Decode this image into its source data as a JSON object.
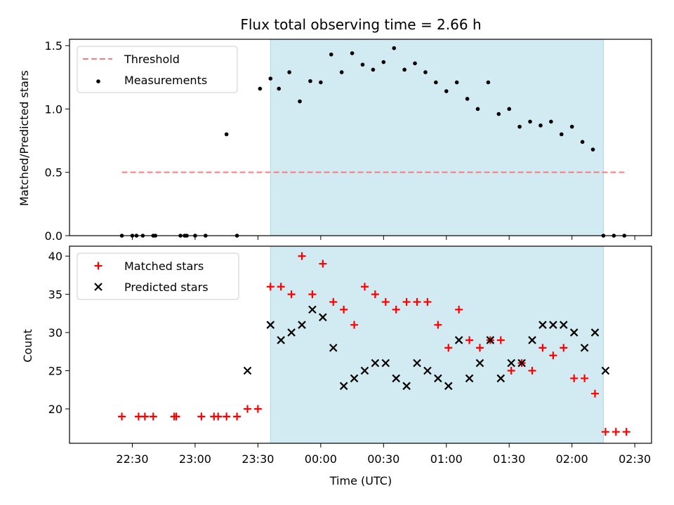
{
  "chart_data": [
    {
      "type": "scatter",
      "title": "Flux total observing time = 2.66 h",
      "xlabel": "",
      "ylabel": "Matched/Predicted stars",
      "ylim": [
        0,
        1.55
      ],
      "yticks": [
        0.0,
        0.5,
        1.0,
        1.5
      ],
      "ytick_labels": [
        "0.0",
        "0.5",
        "1.0",
        "1.5"
      ],
      "grid": false,
      "legend_position": "top-left",
      "shaded_x_range": [
        "23:36",
        "02:15"
      ],
      "shaded_color": "#add8e6",
      "series": [
        {
          "name": "Threshold",
          "kind": "dashed-line",
          "color": "#ff6666",
          "x": [
            "22:25",
            "02:25"
          ],
          "y": [
            0.5,
            0.5
          ]
        },
        {
          "name": "Measurements",
          "kind": "dots",
          "color": "#000000",
          "x": [
            "22:25",
            "22:30",
            "22:32",
            "22:35",
            "22:40",
            "22:41",
            "22:53",
            "22:55",
            "22:56",
            "23:00",
            "23:05",
            "23:15",
            "23:20",
            "23:31",
            "23:36",
            "23:40",
            "23:45",
            "23:50",
            "23:55",
            "24:00",
            "24:05",
            "24:10",
            "24:15",
            "24:20",
            "24:25",
            "24:30",
            "24:35",
            "24:40",
            "24:45",
            "24:50",
            "24:55",
            "25:00",
            "25:05",
            "25:10",
            "25:15",
            "25:20",
            "25:25",
            "25:30",
            "25:35",
            "25:40",
            "25:45",
            "25:50",
            "25:55",
            "26:00",
            "26:05",
            "26:10",
            "26:15",
            "26:20",
            "26:25"
          ],
          "y": [
            0,
            0,
            0,
            0,
            0,
            0,
            0,
            0,
            0,
            0,
            0,
            0.8,
            0,
            1.16,
            1.24,
            1.16,
            1.29,
            1.06,
            1.22,
            1.21,
            1.43,
            1.29,
            1.44,
            1.35,
            1.31,
            1.37,
            1.48,
            1.31,
            1.36,
            1.29,
            1.21,
            1.14,
            1.21,
            1.08,
            1.0,
            1.21,
            0.96,
            1.0,
            0.86,
            0.9,
            0.87,
            0.9,
            0.8,
            0.86,
            0.74,
            0.68,
            0,
            0,
            0
          ]
        }
      ]
    },
    {
      "type": "scatter",
      "title": "",
      "xlabel": "Time (UTC)",
      "ylabel": "Count",
      "ylim": [
        15.5,
        41.3
      ],
      "yticks": [
        20,
        25,
        30,
        35,
        40
      ],
      "ytick_labels": [
        "20",
        "25",
        "30",
        "35",
        "40"
      ],
      "x_ticks": [
        "22:30",
        "23:00",
        "23:30",
        "00:00",
        "00:30",
        "01:00",
        "01:30",
        "02:00",
        "02:30"
      ],
      "grid": false,
      "legend_position": "top-left",
      "shaded_x_range": [
        "23:36",
        "02:15"
      ],
      "shaded_color": "#add8e6",
      "series": [
        {
          "name": "Matched stars",
          "marker": "plus",
          "color": "#ff0000",
          "x": [
            "22:25",
            "22:33",
            "22:36",
            "22:40",
            "22:50",
            "22:51",
            "23:03",
            "23:09",
            "23:11",
            "23:15",
            "23:20",
            "23:25",
            "23:30",
            "23:36",
            "23:41",
            "23:46",
            "23:51",
            "23:56",
            "24:01",
            "24:06",
            "24:11",
            "24:16",
            "24:21",
            "24:26",
            "24:31",
            "24:36",
            "24:41",
            "24:46",
            "24:51",
            "24:56",
            "25:01",
            "25:06",
            "25:11",
            "25:16",
            "25:21",
            "25:26",
            "25:31",
            "25:36",
            "25:41",
            "25:46",
            "25:51",
            "25:56",
            "26:01",
            "26:06",
            "26:11",
            "26:16",
            "26:21",
            "26:26"
          ],
          "y": [
            19,
            19,
            19,
            19,
            19,
            19,
            19,
            19,
            19,
            19,
            19,
            20,
            20,
            36,
            36,
            35,
            40,
            35,
            39,
            34,
            33,
            31,
            36,
            35,
            34,
            33,
            34,
            34,
            34,
            31,
            28,
            33,
            29,
            28,
            29,
            29,
            25,
            26,
            25,
            28,
            27,
            28,
            24,
            24,
            22,
            17,
            17,
            17
          ]
        },
        {
          "name": "Predicted stars",
          "marker": "x",
          "color": "#000000",
          "x": [
            "23:25",
            "23:36",
            "23:41",
            "23:46",
            "23:51",
            "23:56",
            "24:01",
            "24:06",
            "24:11",
            "24:16",
            "24:21",
            "24:26",
            "24:31",
            "24:36",
            "24:41",
            "24:46",
            "24:51",
            "24:56",
            "25:01",
            "25:06",
            "25:11",
            "25:16",
            "25:21",
            "25:26",
            "25:31",
            "25:36",
            "25:41",
            "25:46",
            "25:51",
            "25:56",
            "26:01",
            "26:06",
            "26:11",
            "26:16"
          ],
          "y": [
            25,
            31,
            29,
            30,
            31,
            33,
            32,
            28,
            23,
            24,
            25,
            26,
            26,
            24,
            23,
            26,
            25,
            24,
            23,
            29,
            24,
            26,
            29,
            24,
            26,
            26,
            29,
            31,
            31,
            31,
            30,
            28,
            30,
            25
          ]
        }
      ]
    }
  ]
}
